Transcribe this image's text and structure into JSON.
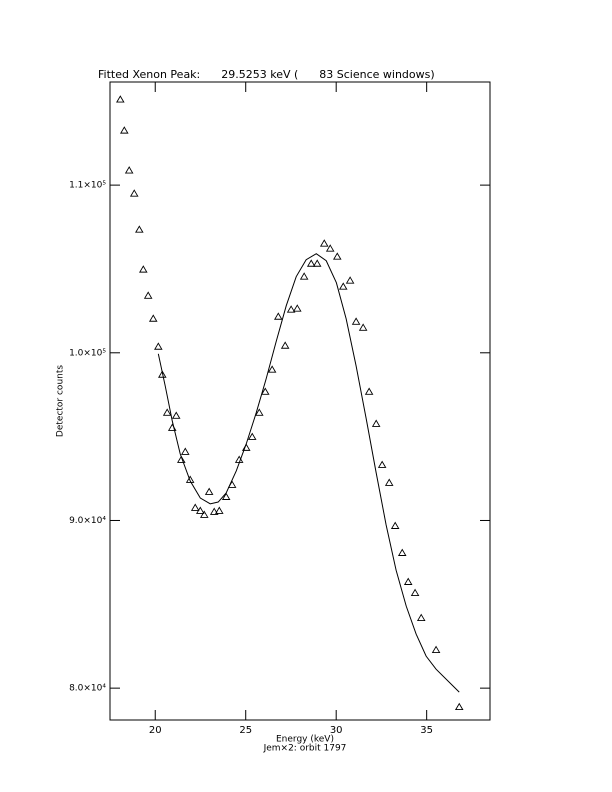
{
  "chart_data": {
    "type": "scatter",
    "title": "Fitted Xenon Peak:      29.5253 keV (      83 Science windows)",
    "x_label": "Energy (keV)",
    "subtitle": "Jem×2: orbit 1797",
    "y_label": "Detector counts",
    "xlim": [
      17.5,
      38.5
    ],
    "ylim": [
      78100,
      116150
    ],
    "xticks": [
      20,
      25,
      30,
      35
    ],
    "yticks": [
      {
        "value": 80000,
        "label": "8.0×10⁴"
      },
      {
        "value": 90000,
        "label": "9.0×10⁴"
      },
      {
        "value": 100000,
        "label": "1.0×10⁵"
      },
      {
        "value": 110000,
        "label": "1.1×10⁵"
      }
    ],
    "series": [
      {
        "type": "scatter",
        "color": "#000000",
        "x": [
          18.07,
          18.29,
          18.56,
          18.84,
          19.12,
          19.34,
          19.61,
          19.89,
          20.17,
          20.39,
          20.66,
          20.94,
          21.16,
          21.44,
          21.66,
          21.93,
          22.21,
          22.49,
          22.71,
          22.98,
          23.26,
          23.54,
          23.92,
          24.25,
          24.64,
          25.03,
          25.36,
          25.75,
          26.08,
          26.46,
          26.8,
          27.18,
          27.51,
          27.85,
          28.23,
          28.62,
          28.95,
          29.34,
          29.67,
          30.06,
          30.39,
          30.77,
          31.1,
          31.49,
          31.82,
          32.21,
          32.54,
          32.93,
          33.26,
          33.65,
          33.98,
          34.36,
          34.7,
          35.52,
          36.8
        ],
        "values": [
          115100,
          113250,
          110870,
          109490,
          107340,
          104960,
          103400,
          102030,
          100360,
          98690,
          96420,
          95520,
          96240,
          93610,
          94090,
          92420,
          90750,
          90570,
          90330,
          91700,
          90510,
          90570,
          91400,
          92120,
          93610,
          94330,
          94980,
          96420,
          97670,
          98990,
          102150,
          100420,
          102570,
          102630,
          104540,
          105310,
          105310,
          106510,
          106210,
          105730,
          103940,
          104300,
          101850,
          101490,
          97670,
          95760,
          93310,
          92240,
          89670,
          88060,
          86330,
          85670,
          84180,
          82270,
          78870
        ]
      },
      {
        "type": "line",
        "color": "#000000",
        "x": [
          20.17,
          20.55,
          20.94,
          21.38,
          21.93,
          22.49,
          23.04,
          23.48,
          23.92,
          24.48,
          25.03,
          25.58,
          26.13,
          26.68,
          27.24,
          27.79,
          28.34,
          28.9,
          29.45,
          30.01,
          30.55,
          31.1,
          31.66,
          32.21,
          32.76,
          33.31,
          33.87,
          34.42,
          34.97,
          35.52,
          36.8
        ],
        "values": [
          99940,
          98030,
          95940,
          93970,
          92360,
          91340,
          90990,
          91100,
          91640,
          92960,
          94570,
          96420,
          98450,
          100660,
          102810,
          104540,
          105550,
          105910,
          105490,
          104180,
          102030,
          99220,
          96060,
          92840,
          89730,
          87040,
          84890,
          83220,
          81910,
          81130,
          79760
        ]
      }
    ]
  }
}
